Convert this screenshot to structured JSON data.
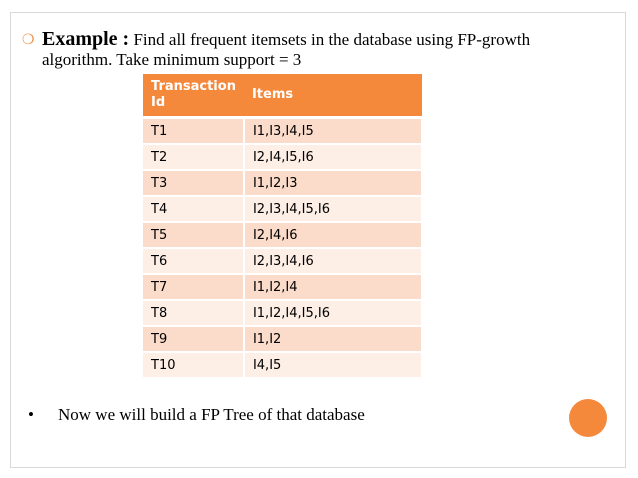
{
  "intro": {
    "bullet_icon": "circle-bullet-icon",
    "example_label": "Example :",
    "line1_text": " Find all frequent itemsets in the database using FP-growth",
    "line2_text": "algorithm. Take minimum support = 3"
  },
  "table": {
    "headers": [
      "Transaction Id",
      "Items"
    ],
    "header_color": "#f4893c",
    "rows": [
      {
        "tid": "T1",
        "items": "I1,I3,I4,I5"
      },
      {
        "tid": "T2",
        "items": "I2,I4,I5,I6"
      },
      {
        "tid": "T3",
        "items": "I1,I2,I3"
      },
      {
        "tid": "T4",
        "items": "I2,I3,I4,I5,I6"
      },
      {
        "tid": "T5",
        "items": "I2,I4,I6"
      },
      {
        "tid": "T6",
        "items": "I2,I3,I4,I6"
      },
      {
        "tid": "T7",
        "items": "I1,I2,I4"
      },
      {
        "tid": "T8",
        "items": "I1,I2,I4,I5,I6"
      },
      {
        "tid": "T9",
        "items": "I1,I2"
      },
      {
        "tid": "T10",
        "items": "I4,I5"
      }
    ]
  },
  "footer": {
    "bullet": "•",
    "text": "Now we will build a FP Tree of that database"
  },
  "accent_color": "#f4893c"
}
